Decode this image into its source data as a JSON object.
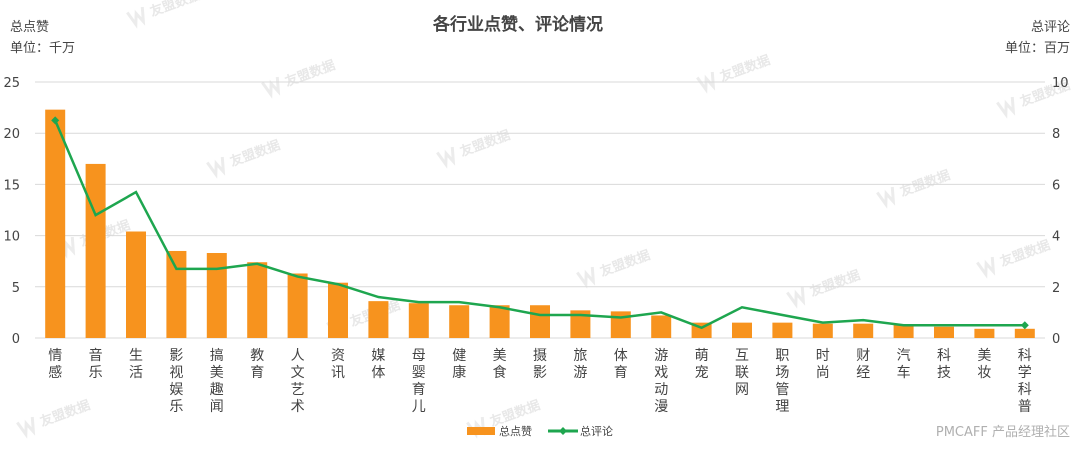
{
  "chart_data": {
    "type": "bar+line",
    "title": "各行业点赞、评论情况",
    "left_axis": {
      "label": "总点赞",
      "unit": "单位：千万",
      "ylim": [
        0,
        25
      ],
      "ticks": [
        0,
        5,
        10,
        15,
        20,
        25
      ]
    },
    "right_axis": {
      "label": "总评论",
      "unit": "单位：百万",
      "ylim": [
        0,
        10
      ],
      "ticks": [
        0,
        2,
        4,
        6,
        8,
        10
      ]
    },
    "categories": [
      "情感",
      "音乐",
      "生活",
      "影视娱乐",
      "搞美趣闻",
      "教育",
      "人文艺术",
      "资讯",
      "媒体",
      "母婴育儿",
      "健康",
      "美食",
      "摄影",
      "旅游",
      "体育",
      "游戏动漫",
      "萌宠",
      "互联网",
      "职场管理",
      "时尚",
      "财经",
      "汽车",
      "科技",
      "美妆",
      "科学科普"
    ],
    "series": [
      {
        "name": "总点赞",
        "type": "bar",
        "axis": "left",
        "color": "#F7931E",
        "values": [
          22.3,
          17.0,
          10.4,
          8.5,
          8.3,
          7.4,
          6.3,
          5.4,
          3.6,
          3.4,
          3.2,
          3.2,
          3.2,
          2.7,
          2.6,
          2.2,
          1.5,
          1.5,
          1.5,
          1.4,
          1.4,
          1.3,
          1.1,
          0.9,
          0.9
        ]
      },
      {
        "name": "总评论",
        "type": "line",
        "axis": "right",
        "color": "#1EA64F",
        "values": [
          8.5,
          4.8,
          5.7,
          2.7,
          2.7,
          2.9,
          2.4,
          2.1,
          1.6,
          1.4,
          1.4,
          1.2,
          0.9,
          0.9,
          0.8,
          1.0,
          0.4,
          1.2,
          0.9,
          0.6,
          0.7,
          0.5,
          0.5,
          0.5,
          0.5
        ]
      }
    ],
    "grid": true,
    "legend_position": "bottom"
  },
  "watermark": {
    "text": "友盟数据",
    "credit": "PMCAFF 产品经理社区"
  },
  "colors": {
    "bar": "#F7931E",
    "line": "#1EA64F",
    "grid": "#d9d9d9"
  }
}
